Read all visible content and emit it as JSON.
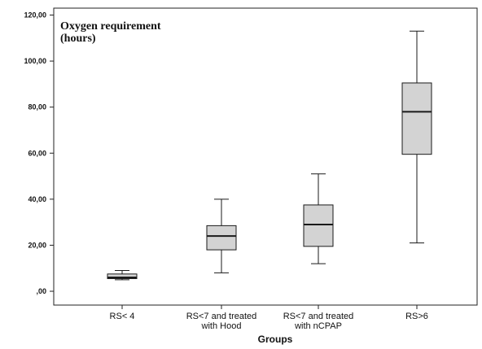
{
  "chart_data": {
    "type": "box",
    "title": "Oxygen requirement\n(hours)",
    "xlabel": "Groups",
    "ylabel": "",
    "ylim": [
      -6,
      123
    ],
    "y_ticks": [
      0,
      20,
      40,
      60,
      80,
      100,
      120
    ],
    "y_tick_labels": [
      ",00",
      "20,00",
      "40,00",
      "60,00",
      "80,00",
      "100,00",
      "120,00"
    ],
    "categories": [
      "RS< 4",
      "RS<7 and treated\nwith Hood",
      "RS<7 and treated\nwith nCPAP",
      "RS>6"
    ],
    "boxes": [
      {
        "min": 5,
        "q1": 5.5,
        "median": 6,
        "q3": 7.5,
        "max": 9
      },
      {
        "min": 8,
        "q1": 18,
        "median": 24,
        "q3": 28.5,
        "max": 40
      },
      {
        "min": 12,
        "q1": 19.5,
        "median": 29,
        "q3": 37.5,
        "max": 51
      },
      {
        "min": 21,
        "q1": 59.5,
        "median": 78,
        "q3": 90.5,
        "max": 113
      }
    ],
    "box_fill": "#d3d3d3",
    "stroke": "#1a1a1a",
    "grid": false,
    "legend": "none"
  }
}
